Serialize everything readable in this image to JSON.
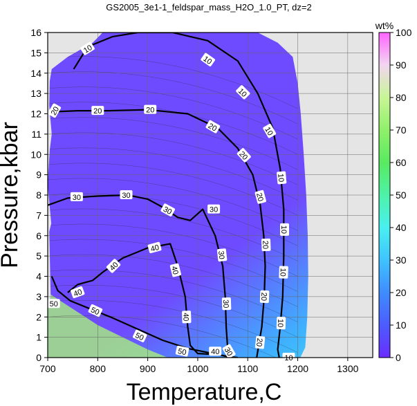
{
  "chart_data": {
    "type": "heatmap",
    "title": "GS2005_3e1-1_feldspar_mass_H2O_1.0_PT, dz=2",
    "xlabel": "Temperature,C",
    "ylabel": "Pressure,kbar",
    "xlim": [
      700,
      1350
    ],
    "ylim": [
      0,
      16
    ],
    "x_ticks": [
      700,
      800,
      900,
      1000,
      1100,
      1200,
      1300
    ],
    "y_ticks": [
      0,
      1,
      2,
      3,
      4,
      5,
      6,
      7,
      8,
      9,
      10,
      11,
      12,
      13,
      14,
      15,
      16
    ],
    "grid": true,
    "colorbar": {
      "label": "wt%",
      "range": [
        0,
        100
      ],
      "ticks": [
        0,
        10,
        20,
        30,
        40,
        50,
        60,
        70,
        80,
        90,
        100
      ],
      "colors": [
        "#6b2cff",
        "#4c5cff",
        "#3f8cff",
        "#3fc3ff",
        "#49f0f0",
        "#4ef2a8",
        "#58ea60",
        "#8ff06a",
        "#c8f596",
        "#f2d6f0",
        "#ff63ff"
      ]
    },
    "no_data_color": "#e5e5e5",
    "major_contours": [
      {
        "level": 10,
        "points": [
          [
            752,
            14.2
          ],
          [
            780,
            15.3
          ],
          [
            830,
            15.8
          ],
          [
            880,
            16.0
          ],
          [
            950,
            16.0
          ],
          [
            1020,
            15.6
          ],
          [
            1080,
            14.6
          ],
          [
            1120,
            13.0
          ],
          [
            1150,
            11.3
          ],
          [
            1165,
            9.3
          ],
          [
            1172,
            7.3
          ],
          [
            1172,
            5.0
          ],
          [
            1170,
            3.0
          ],
          [
            1165,
            1.5
          ],
          [
            1160,
            0.4
          ],
          [
            1163,
            0.0
          ]
        ]
      },
      {
        "level": 20,
        "points": [
          [
            710,
            12.1
          ],
          [
            760,
            12.15
          ],
          [
            820,
            12.15
          ],
          [
            900,
            12.2
          ],
          [
            980,
            12.0
          ],
          [
            1040,
            11.3
          ],
          [
            1080,
            10.3
          ],
          [
            1110,
            9.0
          ],
          [
            1125,
            7.5
          ],
          [
            1132,
            6.0
          ],
          [
            1135,
            4.5
          ],
          [
            1133,
            3.0
          ],
          [
            1128,
            1.5
          ],
          [
            1122,
            0.6
          ],
          [
            1118,
            0.0
          ]
        ]
      },
      {
        "level": 30,
        "points": [
          [
            700,
            7.5
          ],
          [
            740,
            7.85
          ],
          [
            800,
            7.95
          ],
          [
            860,
            8.0
          ],
          [
            900,
            7.8
          ],
          [
            930,
            7.4
          ],
          [
            960,
            6.9
          ],
          [
            985,
            6.75
          ],
          [
            1010,
            7.3
          ],
          [
            1035,
            6.0
          ],
          [
            1050,
            4.5
          ],
          [
            1055,
            3.0
          ],
          [
            1057,
            1.5
          ],
          [
            1060,
            0.4
          ],
          [
            1066,
            0.0
          ]
        ]
      },
      {
        "level": 40,
        "points": [
          [
            740,
            3.2
          ],
          [
            760,
            3.6
          ],
          [
            790,
            3.8
          ],
          [
            810,
            4.2
          ],
          [
            850,
            4.9
          ],
          [
            900,
            5.4
          ],
          [
            945,
            5.6
          ],
          [
            960,
            4.5
          ],
          [
            975,
            3.0
          ],
          [
            980,
            1.5
          ],
          [
            985,
            0.6
          ],
          [
            1000,
            0.2
          ],
          [
            1040,
            0.15
          ],
          [
            1070,
            0.0
          ]
        ]
      },
      {
        "level": 50,
        "points": [
          [
            708,
            4.0
          ],
          [
            720,
            3.3
          ],
          [
            745,
            2.8
          ],
          [
            790,
            2.35
          ],
          [
            830,
            1.95
          ],
          [
            880,
            1.4
          ],
          [
            930,
            0.85
          ],
          [
            980,
            0.45
          ],
          [
            1030,
            0.2
          ],
          [
            1060,
            0.05
          ],
          [
            1080,
            0.0
          ]
        ]
      }
    ],
    "contour_labels": [
      {
        "text": "10",
        "x": 780,
        "y": 15.2,
        "angle": -32
      },
      {
        "text": "10",
        "x": 1020,
        "y": 14.65,
        "angle": 35
      },
      {
        "text": "10",
        "x": 1090,
        "y": 13.05,
        "angle": 45
      },
      {
        "text": "10",
        "x": 1143,
        "y": 11.15,
        "angle": 60
      },
      {
        "text": "10",
        "x": 1167,
        "y": 8.85,
        "angle": 85
      },
      {
        "text": "10",
        "x": 1173,
        "y": 6.3,
        "angle": 90
      },
      {
        "text": "10",
        "x": 1171,
        "y": 4.2,
        "angle": 92
      },
      {
        "text": "10",
        "x": 1166,
        "y": 1.7,
        "angle": 92
      },
      {
        "text": "10",
        "x": 1182,
        "y": 0.0,
        "angle": 0
      },
      {
        "text": "20",
        "x": 714,
        "y": 12.15,
        "angle": -60
      },
      {
        "text": "20",
        "x": 800,
        "y": 12.15,
        "angle": 0
      },
      {
        "text": "20",
        "x": 905,
        "y": 12.2,
        "angle": 0
      },
      {
        "text": "20",
        "x": 1030,
        "y": 11.35,
        "angle": 30
      },
      {
        "text": "20",
        "x": 1092,
        "y": 9.95,
        "angle": 48
      },
      {
        "text": "20",
        "x": 1125,
        "y": 7.9,
        "angle": 75
      },
      {
        "text": "20",
        "x": 1136,
        "y": 5.55,
        "angle": 88
      },
      {
        "text": "20",
        "x": 1133,
        "y": 3.0,
        "angle": 92
      },
      {
        "text": "20",
        "x": 1124,
        "y": 0.75,
        "angle": 96
      },
      {
        "text": "30",
        "x": 758,
        "y": 7.9,
        "angle": 0
      },
      {
        "text": "30",
        "x": 857,
        "y": 8.0,
        "angle": 0
      },
      {
        "text": "30",
        "x": 940,
        "y": 7.25,
        "angle": 28
      },
      {
        "text": "30",
        "x": 1032,
        "y": 7.3,
        "angle": 0
      },
      {
        "text": "30",
        "x": 1048,
        "y": 5.05,
        "angle": 84
      },
      {
        "text": "30",
        "x": 1057,
        "y": 2.65,
        "angle": 88
      },
      {
        "text": "30",
        "x": 1062,
        "y": 0.3,
        "angle": 60
      },
      {
        "text": "40",
        "x": 760,
        "y": 3.2,
        "angle": -20
      },
      {
        "text": "40",
        "x": 832,
        "y": 4.5,
        "angle": -45
      },
      {
        "text": "40",
        "x": 914,
        "y": 5.4,
        "angle": -15
      },
      {
        "text": "40",
        "x": 955,
        "y": 4.3,
        "angle": 76
      },
      {
        "text": "40",
        "x": 977,
        "y": 2.0,
        "angle": 88
      },
      {
        "text": "40",
        "x": 1035,
        "y": 0.3,
        "angle": 0
      },
      {
        "text": "50",
        "x": 712,
        "y": 2.65,
        "angle": 0
      },
      {
        "text": "50",
        "x": 795,
        "y": 2.3,
        "angle": 25
      },
      {
        "text": "50",
        "x": 884,
        "y": 1.05,
        "angle": 25
      },
      {
        "text": "50",
        "x": 969,
        "y": 0.3,
        "angle": 12
      }
    ]
  }
}
